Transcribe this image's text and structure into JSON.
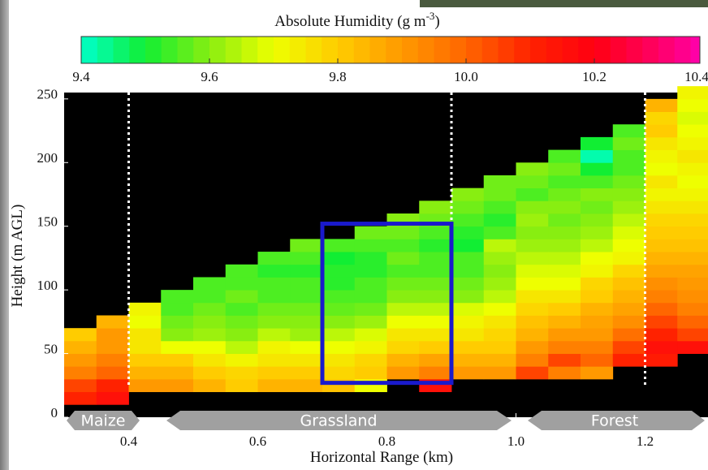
{
  "chart_data": {
    "type": "heatmap",
    "colorbar_label": [
      "Absolute Humidity (g m",
      "-3",
      ")"
    ],
    "x_label": "Horizontal Range (km)",
    "y_label": "Height (m AGL)",
    "xlim": [
      0.3,
      1.3
    ],
    "ylim": [
      0,
      255
    ],
    "xticks": [
      0.4,
      0.6,
      0.8,
      {
        "value": 1,
        "label": "1.0"
      },
      1.2
    ],
    "yticks": [
      0,
      50,
      100,
      150,
      200,
      250
    ],
    "clim": [
      9.4,
      10.4
    ],
    "cticks": [
      9.4,
      9.6,
      9.8,
      {
        "value": 10,
        "label": "10.0"
      },
      10.2,
      10.4
    ],
    "colormap": [
      "#00ffcc",
      "#11ee33",
      "#88ee11",
      "#eeff00",
      "#ffcc00",
      "#ff9900",
      "#ff6600",
      "#ff2200",
      "#ff0011",
      "#ff0066",
      "#ff00cc"
    ],
    "background": "#000000",
    "x_edges": [
      0.3,
      0.35,
      0.4,
      0.45,
      0.5,
      0.55,
      0.6,
      0.65,
      0.7,
      0.75,
      0.8,
      0.85,
      0.9,
      0.95,
      1.0,
      1.05,
      1.1,
      1.15,
      1.2,
      1.25,
      1.3
    ],
    "y_edges": [
      0,
      10,
      20,
      30,
      40,
      50,
      60,
      70,
      80,
      90,
      100,
      110,
      120,
      130,
      140,
      150,
      160,
      170,
      180,
      190,
      200,
      210,
      220,
      230,
      240,
      250,
      260
    ],
    "z": [
      [
        null,
        10.1,
        10.05,
        9.95,
        9.9,
        9.85,
        9.8,
        null,
        null,
        null,
        null,
        null,
        null,
        null,
        null,
        null,
        null,
        null,
        null,
        null,
        null,
        null,
        null,
        null,
        null,
        null
      ],
      [
        null,
        10.15,
        10.1,
        10.0,
        9.95,
        9.9,
        9.9,
        9.85,
        null,
        null,
        null,
        null,
        null,
        null,
        null,
        null,
        null,
        null,
        null,
        null,
        null,
        null,
        null,
        null,
        null,
        null
      ],
      [
        null,
        null,
        9.9,
        9.85,
        9.8,
        9.75,
        9.75,
        9.7,
        9.72,
        null,
        null,
        null,
        null,
        null,
        null,
        null,
        null,
        null,
        null,
        null,
        null,
        null,
        null,
        null,
        null,
        null
      ],
      [
        null,
        null,
        9.9,
        9.85,
        9.8,
        9.7,
        9.6,
        9.58,
        9.55,
        9.55,
        null,
        null,
        null,
        null,
        null,
        null,
        null,
        null,
        null,
        null,
        null,
        null,
        null,
        null,
        null,
        null
      ],
      [
        null,
        null,
        9.85,
        9.8,
        9.75,
        9.7,
        9.62,
        9.6,
        9.58,
        9.55,
        9.55,
        null,
        null,
        null,
        null,
        null,
        null,
        null,
        null,
        null,
        null,
        null,
        null,
        null,
        null,
        null
      ],
      [
        null,
        null,
        9.8,
        9.78,
        9.72,
        9.65,
        9.6,
        9.58,
        9.55,
        9.58,
        9.55,
        9.55,
        null,
        null,
        null,
        null,
        null,
        null,
        null,
        null,
        null,
        null,
        null,
        null,
        null,
        null
      ],
      [
        null,
        null,
        9.85,
        9.8,
        9.75,
        9.72,
        9.65,
        9.6,
        9.58,
        9.55,
        9.55,
        9.52,
        9.55,
        null,
        null,
        null,
        null,
        null,
        null,
        null,
        null,
        null,
        null,
        null,
        null,
        null
      ],
      [
        null,
        null,
        9.85,
        9.8,
        9.75,
        9.7,
        9.62,
        9.6,
        9.58,
        9.55,
        9.55,
        9.52,
        9.55,
        9.58,
        null,
        null,
        null,
        null,
        null,
        null,
        null,
        null,
        null,
        null,
        null,
        null
      ],
      [
        null,
        null,
        9.82,
        9.78,
        9.75,
        9.7,
        9.65,
        9.6,
        9.57,
        9.55,
        9.52,
        9.52,
        9.5,
        9.55,
        null,
        null,
        null,
        null,
        null,
        null,
        null,
        null,
        null,
        null,
        null,
        null
      ],
      [
        null,
        null,
        9.7,
        9.8,
        9.78,
        9.72,
        9.68,
        9.62,
        9.58,
        9.55,
        9.55,
        9.52,
        9.52,
        9.55,
        9.58,
        null,
        null,
        null,
        null,
        null,
        null,
        null,
        null,
        null,
        null,
        null
      ],
      [
        null,
        null,
        null,
        9.9,
        9.85,
        9.78,
        9.75,
        9.7,
        9.65,
        9.6,
        9.58,
        9.55,
        9.58,
        9.55,
        9.58,
        9.6,
        null,
        null,
        null,
        null,
        null,
        null,
        null,
        null,
        null,
        null
      ],
      [
        null,
        null,
        10.15,
        9.95,
        9.88,
        9.8,
        9.75,
        9.7,
        9.65,
        9.6,
        9.58,
        9.55,
        9.55,
        9.52,
        9.55,
        9.58,
        9.6,
        null,
        null,
        null,
        null,
        null,
        null,
        null,
        null,
        null
      ],
      [
        null,
        null,
        null,
        9.9,
        9.85,
        9.8,
        9.75,
        9.72,
        9.68,
        9.6,
        9.58,
        9.55,
        9.55,
        9.5,
        9.52,
        9.55,
        9.58,
        9.6,
        null,
        null,
        null,
        null,
        null,
        null,
        null,
        null
      ],
      [
        null,
        null,
        null,
        9.9,
        9.85,
        9.8,
        9.78,
        9.75,
        9.7,
        9.65,
        9.62,
        9.6,
        9.62,
        9.65,
        9.55,
        9.52,
        9.55,
        9.58,
        9.58,
        null,
        null,
        null,
        null,
        null,
        null,
        null
      ],
      [
        null,
        null,
        null,
        10.05,
        9.95,
        9.9,
        9.85,
        9.82,
        9.78,
        9.75,
        9.7,
        9.68,
        9.65,
        9.62,
        9.6,
        9.62,
        9.6,
        9.55,
        9.58,
        9.6,
        null,
        null,
        null,
        null,
        null,
        null
      ],
      [
        null,
        null,
        null,
        9.95,
        10.05,
        9.95,
        9.9,
        9.85,
        9.8,
        9.75,
        9.7,
        9.68,
        9.65,
        9.62,
        9.6,
        9.58,
        9.6,
        9.58,
        9.55,
        9.58,
        9.55,
        null,
        null,
        null,
        null,
        null
      ],
      [
        null,
        null,
        null,
        9.9,
        10.0,
        9.95,
        9.9,
        9.88,
        9.85,
        9.8,
        9.78,
        9.72,
        9.7,
        9.65,
        9.62,
        9.6,
        9.58,
        9.6,
        9.55,
        9.5,
        9.42,
        9.5,
        null,
        null,
        null,
        null
      ],
      [
        null,
        null,
        null,
        null,
        10.1,
        10.05,
        9.98,
        9.92,
        9.88,
        9.85,
        9.82,
        9.78,
        9.72,
        9.7,
        9.68,
        9.65,
        9.62,
        9.6,
        9.58,
        9.55,
        9.55,
        9.58,
        9.55,
        null,
        null,
        null
      ],
      [
        null,
        null,
        null,
        null,
        10.12,
        10.15,
        10.1,
        10.05,
        10.0,
        9.95,
        9.92,
        9.88,
        9.85,
        9.82,
        9.8,
        9.78,
        9.75,
        9.72,
        9.75,
        9.7,
        9.72,
        9.75,
        9.8,
        9.78,
        9.85,
        null
      ],
      [
        null,
        null,
        null,
        null,
        null,
        10.15,
        10.05,
        10.0,
        9.95,
        9.92,
        9.9,
        9.88,
        9.85,
        9.82,
        9.8,
        9.78,
        9.75,
        9.72,
        9.7,
        9.72,
        9.75,
        9.72,
        9.7,
        9.68,
        9.7,
        9.72
      ]
    ],
    "vlines": [
      0.4,
      0.9,
      1.2
    ],
    "vline_color": "#ffffff",
    "highlight_box": {
      "x": [
        0.7,
        0.9
      ],
      "y": [
        27,
        152
      ],
      "color": "#1a1acc"
    },
    "regions": [
      "Maize",
      "Grassland",
      "Forest"
    ]
  }
}
